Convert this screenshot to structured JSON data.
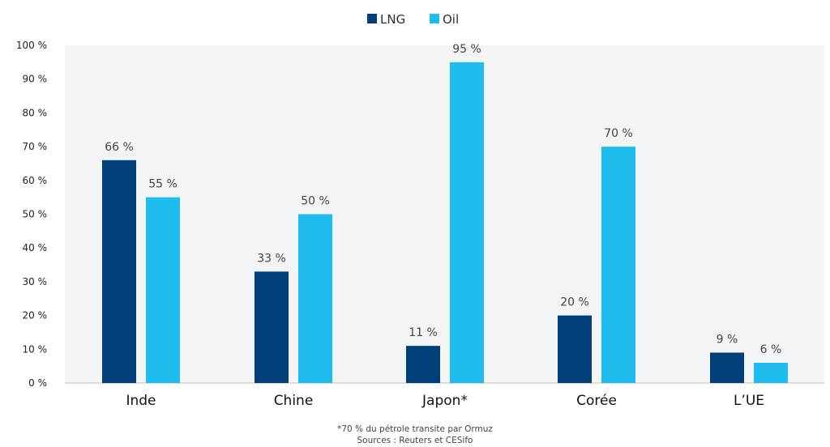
{
  "chart_data": {
    "type": "bar",
    "categories": [
      "Inde",
      "Chine",
      "Japon*",
      "Corée",
      "L’UE"
    ],
    "series": [
      {
        "name": "LNG",
        "color": "#003f7a",
        "values": [
          66,
          33,
          11,
          20,
          9
        ],
        "labels": [
          "66 %",
          "33 %",
          "11 %",
          "20 %",
          "9 %"
        ]
      },
      {
        "name": "Oil",
        "color": "#1fbcee",
        "values": [
          55,
          50,
          95,
          70,
          6
        ],
        "labels": [
          "55 %",
          "50 %",
          "95 %",
          "70 %",
          "6 %"
        ]
      }
    ],
    "ylim": [
      0,
      100
    ],
    "yticks": [
      0,
      10,
      20,
      30,
      40,
      50,
      60,
      70,
      80,
      90,
      100
    ],
    "ytick_labels": [
      "0 %",
      "10 %",
      "20 %",
      "30 %",
      "40 %",
      "50 %",
      "60 %",
      "70 %",
      "80 %",
      "90 %",
      "100 %"
    ],
    "legend_position": "top-center",
    "plot_background": "#f3f4f6",
    "grid": false,
    "title": "",
    "xlabel": "",
    "ylabel": ""
  },
  "footnotes": {
    "note": "*70 % du pétrole transite par Ormuz",
    "sources": "Sources : Reuters et CESifo"
  }
}
